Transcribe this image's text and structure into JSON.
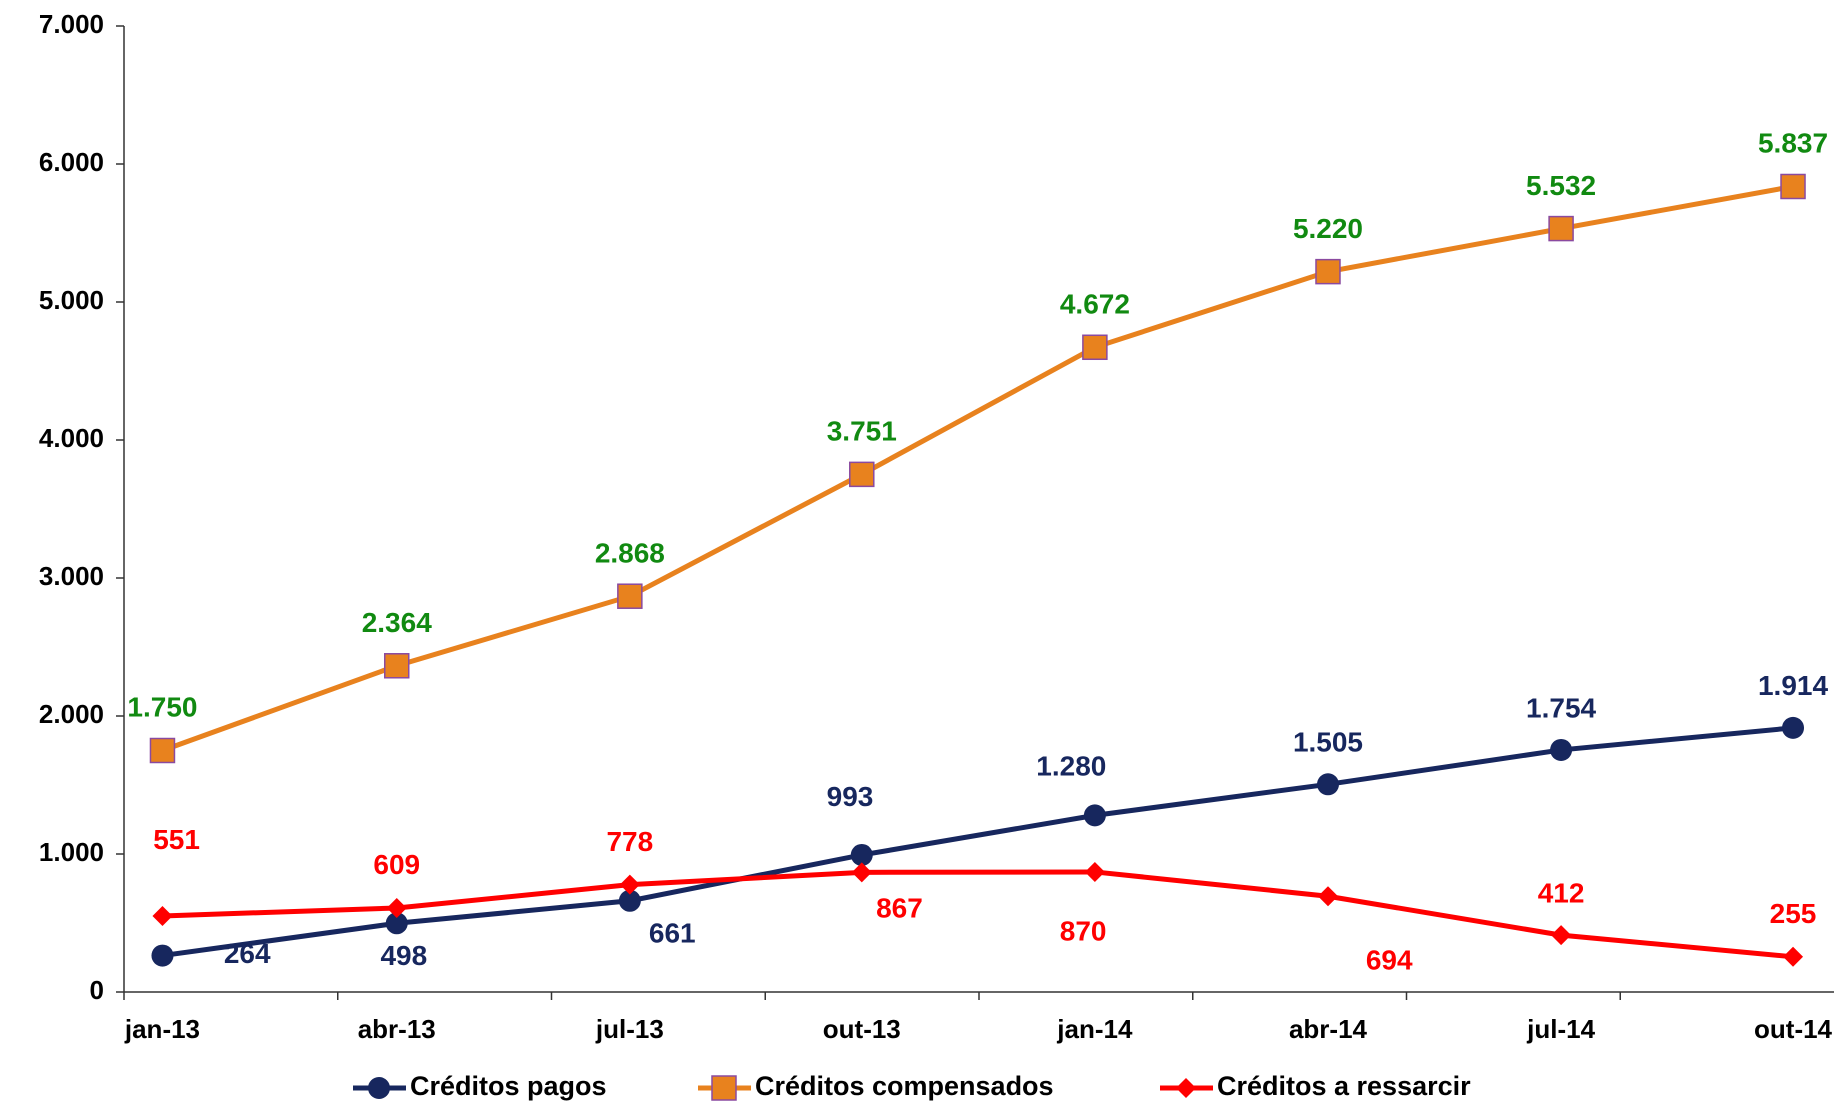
{
  "chart_data": {
    "type": "line",
    "categories": [
      "jan-13",
      "abr-13",
      "jul-13",
      "out-13",
      "jan-14",
      "abr-14",
      "jul-14",
      "out-14"
    ],
    "series": [
      {
        "name": "Créditos pagos",
        "color": "#17275e",
        "marker": "circle",
        "values": [
          264,
          498,
          661,
          993,
          1280,
          1505,
          1754,
          1914
        ],
        "value_labels": [
          "264",
          "498",
          "661",
          "993",
          "1.280",
          "1.505",
          "1.754",
          "1.914"
        ]
      },
      {
        "name": "Créditos compensados",
        "color": "#e8821e",
        "marker": "square",
        "values": [
          1750,
          2364,
          2868,
          3751,
          4672,
          5220,
          5532,
          5837
        ],
        "value_labels": [
          "1.750",
          "2.364",
          "2.868",
          "3.751",
          "4.672",
          "5.220",
          "5.532",
          "5.837"
        ],
        "label_color": "#118a11"
      },
      {
        "name": "Créditos a ressarcir",
        "color": "#ff0000",
        "marker": "diamond",
        "values": [
          551,
          609,
          778,
          867,
          870,
          694,
          412,
          255
        ],
        "value_labels": [
          "551",
          "609",
          "778",
          "867",
          "870",
          "694",
          "412",
          "255"
        ]
      }
    ],
    "ylim": [
      0,
      7000
    ],
    "yticks": [
      0,
      {
        "value": 1000,
        "label": "1.000"
      },
      {
        "value": 2000,
        "label": "2.000"
      },
      {
        "value": 3000,
        "label": "3.000"
      },
      {
        "value": 4000,
        "label": "4.000"
      },
      {
        "value": 5000,
        "label": "5.000"
      },
      {
        "value": 6000,
        "label": "6.000"
      },
      {
        "value": 7000,
        "label": "7.000"
      }
    ],
    "legend": "bottom"
  }
}
